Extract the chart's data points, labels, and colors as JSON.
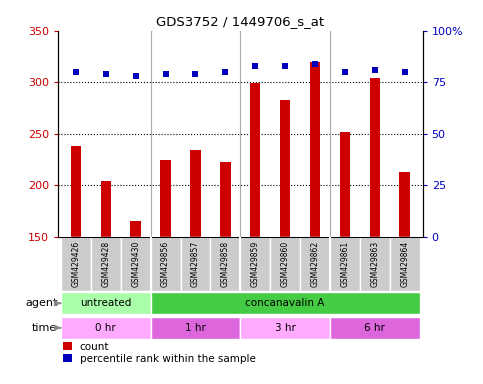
{
  "title": "GDS3752 / 1449706_s_at",
  "samples": [
    "GSM429426",
    "GSM429428",
    "GSM429430",
    "GSM429856",
    "GSM429857",
    "GSM429858",
    "GSM429859",
    "GSM429860",
    "GSM429862",
    "GSM429861",
    "GSM429863",
    "GSM429864"
  ],
  "counts": [
    238,
    204,
    165,
    225,
    234,
    223,
    299,
    283,
    320,
    252,
    304,
    213
  ],
  "percentile_ranks": [
    80,
    79,
    78,
    79,
    79,
    80,
    83,
    83,
    84,
    80,
    81,
    80
  ],
  "ylim_left": [
    150,
    350
  ],
  "ylim_right": [
    0,
    100
  ],
  "yticks_left": [
    150,
    200,
    250,
    300,
    350
  ],
  "yticks_right": [
    0,
    25,
    50,
    75,
    100
  ],
  "bar_color": "#cc0000",
  "dot_color": "#0000bb",
  "bg_color": "#ffffff",
  "sample_row_bg": "#cccccc",
  "agent_row": [
    {
      "label": "untreated",
      "start": 0,
      "end": 3,
      "color": "#aaffaa"
    },
    {
      "label": "concanavalin A",
      "start": 3,
      "end": 12,
      "color": "#44cc44"
    }
  ],
  "time_row": [
    {
      "label": "0 hr",
      "start": 0,
      "end": 3,
      "color": "#ffaaff"
    },
    {
      "label": "1 hr",
      "start": 3,
      "end": 6,
      "color": "#dd66dd"
    },
    {
      "label": "3 hr",
      "start": 6,
      "end": 9,
      "color": "#ffaaff"
    },
    {
      "label": "6 hr",
      "start": 9,
      "end": 12,
      "color": "#dd66dd"
    }
  ],
  "legend_count_label": "count",
  "legend_pct_label": "percentile rank within the sample",
  "dotted_gridlines": [
    200,
    250,
    300
  ],
  "bar_width": 0.35,
  "tick_label_color_left": "#cc0000",
  "tick_label_color_right": "#0000bb",
  "group_separators": [
    2.5,
    5.5,
    8.5
  ],
  "xlim": [
    -0.6,
    11.6
  ]
}
